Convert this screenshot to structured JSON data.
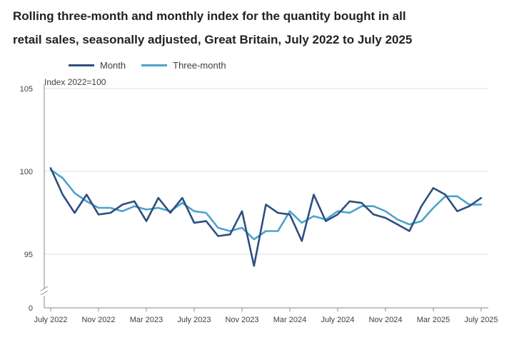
{
  "title": {
    "line1": "Rolling three-month and monthly index for the quantity bought in all",
    "line2": "retail sales, seasonally adjusted, Great Britain, July 2022 to July 2025"
  },
  "colors": {
    "month": "#2e4f7f",
    "three_month": "#4aa3cc",
    "grid": "#e2e2e2",
    "axis": "#8a8a8a"
  },
  "chart_data": {
    "type": "line",
    "ylabel": "Index 2022=100",
    "y_ticks": [
      0,
      95,
      100,
      105
    ],
    "ylim": [
      0,
      105
    ],
    "y_axis_break": true,
    "grid": true,
    "legend_position": "top-left",
    "x_tick_labels": [
      "July 2022",
      "Nov 2022",
      "Mar 2023",
      "July 2023",
      "Nov 2023",
      "Mar 2024",
      "July 2024",
      "Nov 2024",
      "Mar 2025",
      "July 2025"
    ],
    "x_tick_indices": [
      0,
      4,
      8,
      12,
      16,
      20,
      24,
      28,
      32,
      36
    ],
    "categories": [
      "Jul 2022",
      "Aug 2022",
      "Sep 2022",
      "Oct 2022",
      "Nov 2022",
      "Dec 2022",
      "Jan 2023",
      "Feb 2023",
      "Mar 2023",
      "Apr 2023",
      "May 2023",
      "Jun 2023",
      "Jul 2023",
      "Aug 2023",
      "Sep 2023",
      "Oct 2023",
      "Nov 2023",
      "Dec 2023",
      "Jan 2024",
      "Feb 2024",
      "Mar 2024",
      "Apr 2024",
      "May 2024",
      "Jun 2024",
      "Jul 2024",
      "Aug 2024",
      "Sep 2024",
      "Oct 2024",
      "Nov 2024",
      "Dec 2024",
      "Jan 2025",
      "Feb 2025",
      "Mar 2025",
      "Apr 2025",
      "May 2025",
      "Jun 2025",
      "Jul 2025"
    ],
    "series": [
      {
        "name": "Month",
        "color": "#2e4f7f",
        "values": [
          100.2,
          98.6,
          97.5,
          98.6,
          97.4,
          97.5,
          98.0,
          98.2,
          97.0,
          98.4,
          97.5,
          98.4,
          96.9,
          97.0,
          96.1,
          96.2,
          97.6,
          94.3,
          98.0,
          97.5,
          97.4,
          95.8,
          98.6,
          97.0,
          97.4,
          98.2,
          98.1,
          97.4,
          97.2,
          96.8,
          96.4,
          97.9,
          99.0,
          98.6,
          97.6,
          97.9,
          98.4
        ]
      },
      {
        "name": "Three-month",
        "color": "#4aa3cc",
        "values": [
          100.1,
          99.6,
          98.7,
          98.2,
          97.8,
          97.8,
          97.6,
          97.9,
          97.7,
          97.8,
          97.6,
          98.1,
          97.6,
          97.5,
          96.6,
          96.4,
          96.6,
          95.9,
          96.4,
          96.4,
          97.6,
          96.9,
          97.3,
          97.1,
          97.6,
          97.5,
          97.9,
          97.9,
          97.6,
          97.1,
          96.8,
          97.0,
          97.8,
          98.5,
          98.5,
          98.0,
          98.0
        ]
      }
    ]
  }
}
